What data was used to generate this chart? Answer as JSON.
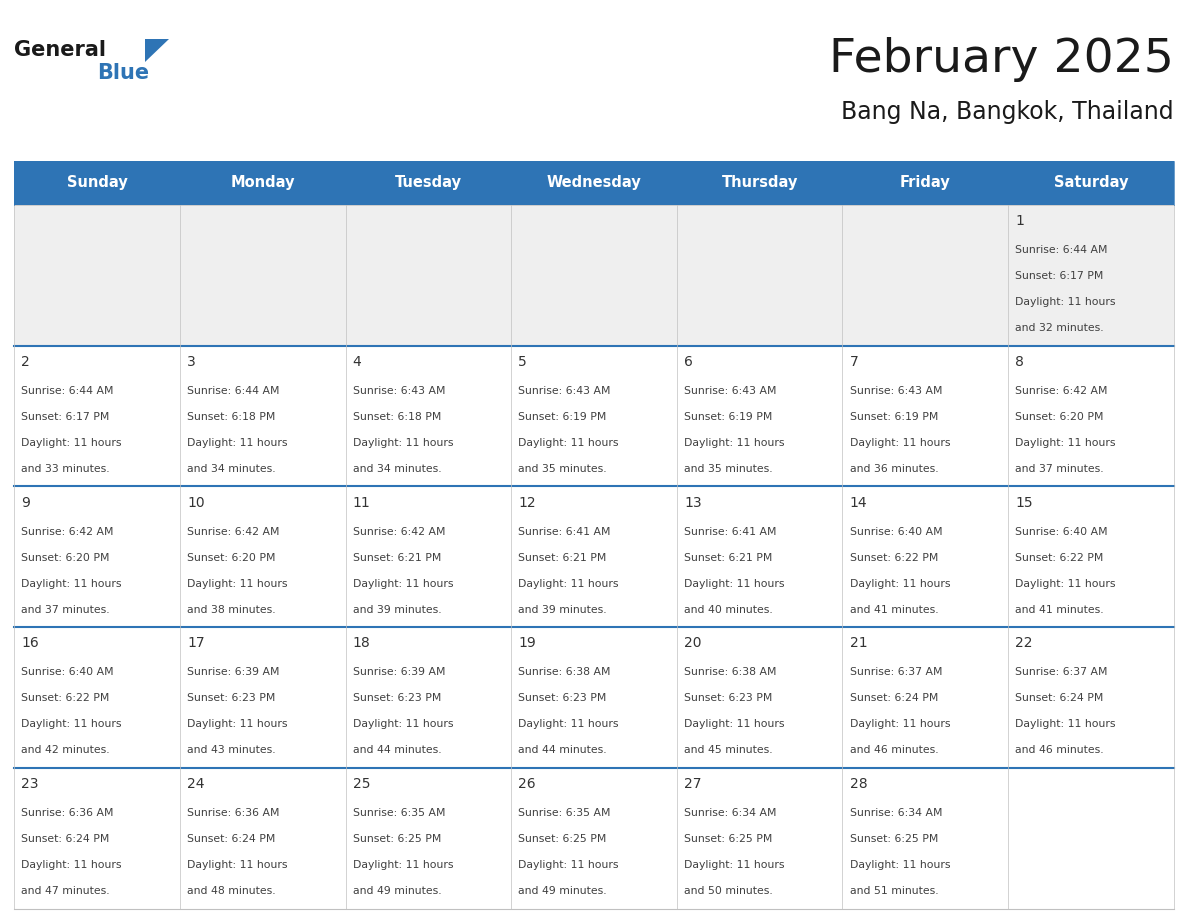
{
  "title": "February 2025",
  "subtitle": "Bang Na, Bangkok, Thailand",
  "header_bg": "#2E74B5",
  "header_text_color": "#FFFFFF",
  "cell_bg_odd": "#F2F2F2",
  "cell_bg_even": "#FFFFFF",
  "row0_bg": "#EFEFEF",
  "border_color": "#2E74B5",
  "grid_line_color": "#C0C0C0",
  "day_headers": [
    "Sunday",
    "Monday",
    "Tuesday",
    "Wednesday",
    "Thursday",
    "Friday",
    "Saturday"
  ],
  "title_color": "#1A1A1A",
  "subtitle_color": "#1A1A1A",
  "day_number_color": "#333333",
  "cell_text_color": "#404040",
  "days": [
    {
      "day": 1,
      "col": 6,
      "row": 0,
      "sunrise": "6:44 AM",
      "sunset": "6:17 PM",
      "daylight_hours": 11,
      "daylight_minutes": 32
    },
    {
      "day": 2,
      "col": 0,
      "row": 1,
      "sunrise": "6:44 AM",
      "sunset": "6:17 PM",
      "daylight_hours": 11,
      "daylight_minutes": 33
    },
    {
      "day": 3,
      "col": 1,
      "row": 1,
      "sunrise": "6:44 AM",
      "sunset": "6:18 PM",
      "daylight_hours": 11,
      "daylight_minutes": 34
    },
    {
      "day": 4,
      "col": 2,
      "row": 1,
      "sunrise": "6:43 AM",
      "sunset": "6:18 PM",
      "daylight_hours": 11,
      "daylight_minutes": 34
    },
    {
      "day": 5,
      "col": 3,
      "row": 1,
      "sunrise": "6:43 AM",
      "sunset": "6:19 PM",
      "daylight_hours": 11,
      "daylight_minutes": 35
    },
    {
      "day": 6,
      "col": 4,
      "row": 1,
      "sunrise": "6:43 AM",
      "sunset": "6:19 PM",
      "daylight_hours": 11,
      "daylight_minutes": 35
    },
    {
      "day": 7,
      "col": 5,
      "row": 1,
      "sunrise": "6:43 AM",
      "sunset": "6:19 PM",
      "daylight_hours": 11,
      "daylight_minutes": 36
    },
    {
      "day": 8,
      "col": 6,
      "row": 1,
      "sunrise": "6:42 AM",
      "sunset": "6:20 PM",
      "daylight_hours": 11,
      "daylight_minutes": 37
    },
    {
      "day": 9,
      "col": 0,
      "row": 2,
      "sunrise": "6:42 AM",
      "sunset": "6:20 PM",
      "daylight_hours": 11,
      "daylight_minutes": 37
    },
    {
      "day": 10,
      "col": 1,
      "row": 2,
      "sunrise": "6:42 AM",
      "sunset": "6:20 PM",
      "daylight_hours": 11,
      "daylight_minutes": 38
    },
    {
      "day": 11,
      "col": 2,
      "row": 2,
      "sunrise": "6:42 AM",
      "sunset": "6:21 PM",
      "daylight_hours": 11,
      "daylight_minutes": 39
    },
    {
      "day": 12,
      "col": 3,
      "row": 2,
      "sunrise": "6:41 AM",
      "sunset": "6:21 PM",
      "daylight_hours": 11,
      "daylight_minutes": 39
    },
    {
      "day": 13,
      "col": 4,
      "row": 2,
      "sunrise": "6:41 AM",
      "sunset": "6:21 PM",
      "daylight_hours": 11,
      "daylight_minutes": 40
    },
    {
      "day": 14,
      "col": 5,
      "row": 2,
      "sunrise": "6:40 AM",
      "sunset": "6:22 PM",
      "daylight_hours": 11,
      "daylight_minutes": 41
    },
    {
      "day": 15,
      "col": 6,
      "row": 2,
      "sunrise": "6:40 AM",
      "sunset": "6:22 PM",
      "daylight_hours": 11,
      "daylight_minutes": 41
    },
    {
      "day": 16,
      "col": 0,
      "row": 3,
      "sunrise": "6:40 AM",
      "sunset": "6:22 PM",
      "daylight_hours": 11,
      "daylight_minutes": 42
    },
    {
      "day": 17,
      "col": 1,
      "row": 3,
      "sunrise": "6:39 AM",
      "sunset": "6:23 PM",
      "daylight_hours": 11,
      "daylight_minutes": 43
    },
    {
      "day": 18,
      "col": 2,
      "row": 3,
      "sunrise": "6:39 AM",
      "sunset": "6:23 PM",
      "daylight_hours": 11,
      "daylight_minutes": 44
    },
    {
      "day": 19,
      "col": 3,
      "row": 3,
      "sunrise": "6:38 AM",
      "sunset": "6:23 PM",
      "daylight_hours": 11,
      "daylight_minutes": 44
    },
    {
      "day": 20,
      "col": 4,
      "row": 3,
      "sunrise": "6:38 AM",
      "sunset": "6:23 PM",
      "daylight_hours": 11,
      "daylight_minutes": 45
    },
    {
      "day": 21,
      "col": 5,
      "row": 3,
      "sunrise": "6:37 AM",
      "sunset": "6:24 PM",
      "daylight_hours": 11,
      "daylight_minutes": 46
    },
    {
      "day": 22,
      "col": 6,
      "row": 3,
      "sunrise": "6:37 AM",
      "sunset": "6:24 PM",
      "daylight_hours": 11,
      "daylight_minutes": 46
    },
    {
      "day": 23,
      "col": 0,
      "row": 4,
      "sunrise": "6:36 AM",
      "sunset": "6:24 PM",
      "daylight_hours": 11,
      "daylight_minutes": 47
    },
    {
      "day": 24,
      "col": 1,
      "row": 4,
      "sunrise": "6:36 AM",
      "sunset": "6:24 PM",
      "daylight_hours": 11,
      "daylight_minutes": 48
    },
    {
      "day": 25,
      "col": 2,
      "row": 4,
      "sunrise": "6:35 AM",
      "sunset": "6:25 PM",
      "daylight_hours": 11,
      "daylight_minutes": 49
    },
    {
      "day": 26,
      "col": 3,
      "row": 4,
      "sunrise": "6:35 AM",
      "sunset": "6:25 PM",
      "daylight_hours": 11,
      "daylight_minutes": 49
    },
    {
      "day": 27,
      "col": 4,
      "row": 4,
      "sunrise": "6:34 AM",
      "sunset": "6:25 PM",
      "daylight_hours": 11,
      "daylight_minutes": 50
    },
    {
      "day": 28,
      "col": 5,
      "row": 4,
      "sunrise": "6:34 AM",
      "sunset": "6:25 PM",
      "daylight_hours": 11,
      "daylight_minutes": 51
    }
  ],
  "num_rows": 5,
  "num_cols": 7,
  "logo_general_color": "#1A1A1A",
  "logo_blue_color": "#2E74B5",
  "fig_width": 11.88,
  "fig_height": 9.18,
  "dpi": 100
}
